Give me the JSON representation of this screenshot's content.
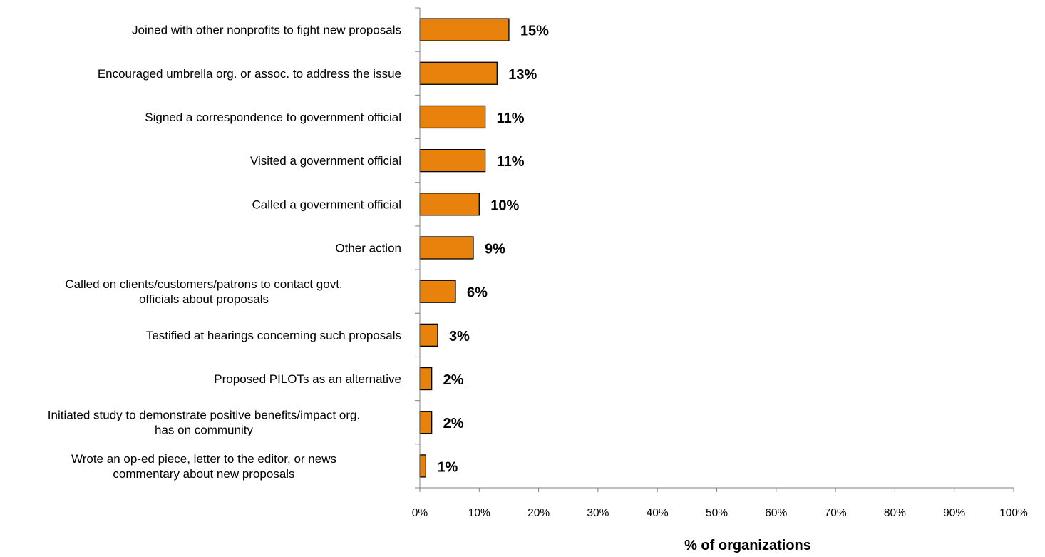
{
  "chart_data": {
    "type": "bar",
    "orientation": "horizontal",
    "categories": [
      [
        "Joined with other nonprofits to fight new proposals"
      ],
      [
        "Encouraged umbrella org. or assoc. to address the issue"
      ],
      [
        "Signed a correspondence to government official"
      ],
      [
        "Visited a government official"
      ],
      [
        "Called a government official"
      ],
      [
        "Other action"
      ],
      [
        "Called on clients/customers/patrons to contact govt.",
        "officials about proposals"
      ],
      [
        "Testified at hearings concerning such proposals"
      ],
      [
        "Proposed PILOTs as an alternative"
      ],
      [
        "Initiated study to demonstrate positive benefits/impact org.",
        "has on community"
      ],
      [
        "Wrote an op-ed piece, letter to the editor, or news",
        "commentary about new proposals"
      ]
    ],
    "values": [
      15,
      13,
      11,
      11,
      10,
      9,
      6,
      3,
      2,
      2,
      1
    ],
    "data_labels": [
      "15%",
      "13%",
      "11%",
      "11%",
      "10%",
      "9%",
      "6%",
      "3%",
      "2%",
      "2%",
      "1%"
    ],
    "xlim": [
      0,
      100
    ],
    "x_ticks": [
      0,
      10,
      20,
      30,
      40,
      50,
      60,
      70,
      80,
      90,
      100
    ],
    "x_tick_labels": [
      "0%",
      "10%",
      "20%",
      "30%",
      "40%",
      "50%",
      "60%",
      "70%",
      "80%",
      "90%",
      "100%"
    ],
    "xlabel": "% of organizations",
    "bar_color": "#E8820C",
    "bar_edge_color": "#000000",
    "grid": false,
    "legend": "none"
  }
}
